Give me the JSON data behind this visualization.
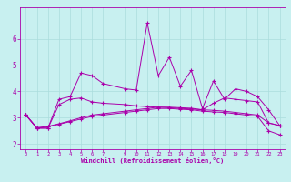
{
  "xlabel": "Windchill (Refroidissement éolien,°C)",
  "background_color": "#c8f0f0",
  "line_color": "#aa00aa",
  "grid_color": "#aadddd",
  "xlim": [
    -0.5,
    23.5
  ],
  "ylim": [
    1.8,
    7.2
  ],
  "xticks": [
    0,
    1,
    2,
    3,
    4,
    5,
    6,
    7,
    9,
    10,
    11,
    12,
    13,
    14,
    15,
    16,
    17,
    18,
    19,
    20,
    21,
    22,
    23
  ],
  "yticks": [
    2,
    3,
    4,
    5,
    6
  ],
  "series1_x": [
    0,
    1,
    2,
    3,
    4,
    5,
    6,
    7,
    9,
    10,
    11,
    12,
    13,
    14,
    15,
    16,
    17,
    18,
    19,
    20,
    21,
    22,
    23
  ],
  "series1_y": [
    3.1,
    2.6,
    2.6,
    3.7,
    3.8,
    4.7,
    4.6,
    4.3,
    4.1,
    4.05,
    6.6,
    4.6,
    5.3,
    4.2,
    4.8,
    3.35,
    4.4,
    3.7,
    4.1,
    4.0,
    3.8,
    3.3,
    2.7
  ],
  "series2_x": [
    0,
    1,
    2,
    3,
    4,
    5,
    6,
    7,
    9,
    10,
    11,
    12,
    13,
    14,
    15,
    16,
    17,
    18,
    19,
    20,
    21,
    22,
    23
  ],
  "series2_y": [
    3.1,
    2.6,
    2.6,
    3.5,
    3.7,
    3.75,
    3.6,
    3.55,
    3.5,
    3.45,
    3.42,
    3.4,
    3.38,
    3.35,
    3.33,
    3.3,
    3.28,
    3.25,
    3.2,
    3.15,
    3.1,
    2.8,
    2.7
  ],
  "series3_x": [
    0,
    1,
    2,
    3,
    4,
    5,
    6,
    7,
    9,
    10,
    11,
    12,
    13,
    14,
    15,
    16,
    17,
    18,
    19,
    20,
    21,
    22,
    23
  ],
  "series3_y": [
    3.1,
    2.6,
    2.65,
    2.75,
    2.85,
    2.95,
    3.05,
    3.1,
    3.2,
    3.25,
    3.3,
    3.35,
    3.35,
    3.32,
    3.3,
    3.25,
    3.22,
    3.2,
    3.15,
    3.1,
    3.05,
    2.5,
    2.35
  ],
  "series4_x": [
    0,
    1,
    2,
    3,
    4,
    5,
    6,
    7,
    9,
    10,
    11,
    12,
    13,
    14,
    15,
    16,
    17,
    18,
    19,
    20,
    21,
    22,
    23
  ],
  "series4_y": [
    3.1,
    2.62,
    2.67,
    2.77,
    2.88,
    3.0,
    3.1,
    3.15,
    3.25,
    3.3,
    3.35,
    3.4,
    3.4,
    3.38,
    3.36,
    3.3,
    3.55,
    3.75,
    3.7,
    3.65,
    3.6,
    2.8,
    2.7
  ]
}
